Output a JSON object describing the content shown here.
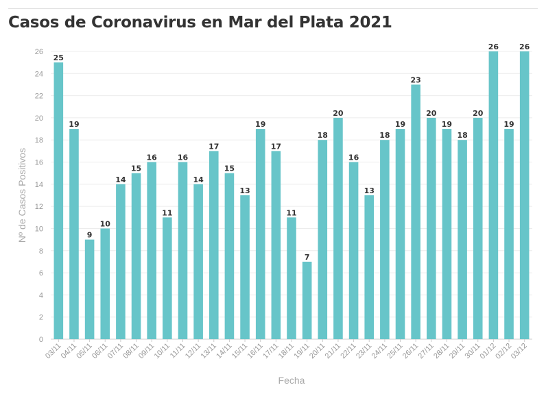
{
  "title": "Casos de Coronavirus en Mar del Plata 2021",
  "chart_data": {
    "type": "bar",
    "title": "Casos de Coronavirus en Mar del Plata 2021",
    "xlabel": "Fecha",
    "ylabel": "Nº de Casos Positivos",
    "ylim": [
      0,
      26
    ],
    "yticks": [
      0,
      2,
      4,
      6,
      8,
      10,
      12,
      14,
      16,
      18,
      20,
      22,
      24,
      26
    ],
    "grid": true,
    "bar_color": "#67c5c9",
    "categories": [
      "03/11",
      "04/11",
      "05/11",
      "06/11",
      "07/11",
      "08/11",
      "09/11",
      "10/11",
      "11/11",
      "12/11",
      "13/11",
      "14/11",
      "15/11",
      "16/11",
      "17/11",
      "18/11",
      "19/11",
      "20/11",
      "21/11",
      "22/11",
      "23/11",
      "24/11",
      "25/11",
      "26/11",
      "27/11",
      "28/11",
      "29/11",
      "30/11",
      "01/12",
      "02/12",
      "03/12"
    ],
    "values": [
      25,
      19,
      9,
      10,
      14,
      15,
      16,
      11,
      16,
      14,
      17,
      15,
      13,
      19,
      17,
      11,
      7,
      18,
      20,
      16,
      13,
      18,
      19,
      23,
      20,
      19,
      18,
      20,
      26,
      19,
      26
    ]
  }
}
